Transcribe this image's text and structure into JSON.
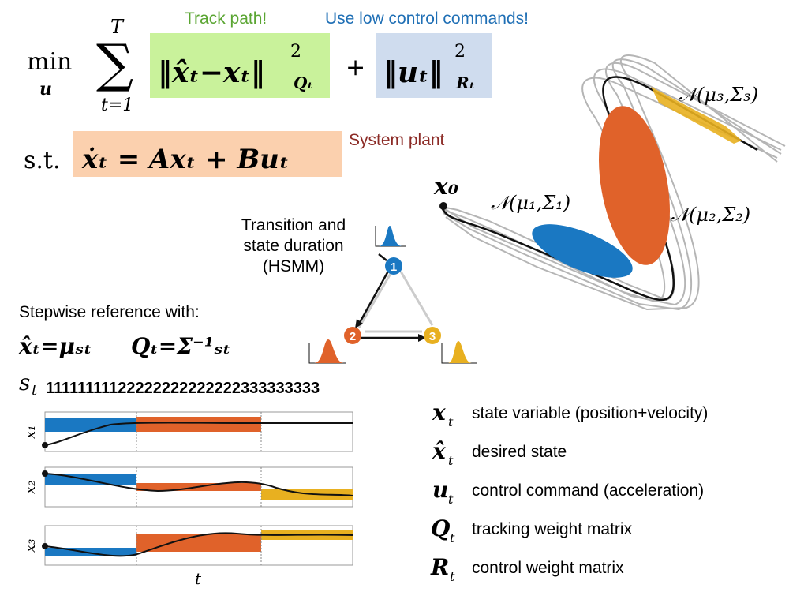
{
  "colors": {
    "blue": "#1a78c2",
    "orange": "#e0622a",
    "yellow": "#e8b020",
    "green_box": "#c9f29b",
    "blue_box": "#cfdcee",
    "orange_box": "#fbd0ae",
    "green_text": "#5aa532",
    "blue_text": "#1f6fb5",
    "red_text": "#8b2a25",
    "grey": "#b5b5b5"
  },
  "annotations": {
    "track_path": "Track path!",
    "low_control": "Use low control commands!",
    "system_plant": "System plant",
    "transition_line1": "Transition and",
    "transition_line2": "state duration",
    "transition_line3": "(HSMM)",
    "stepwise": "Stepwise reference with:"
  },
  "equation": {
    "min": "min",
    "min_sub": "u",
    "sum_upper": "T",
    "sum_lower": "t=1",
    "plus": "+",
    "st": "s.t.",
    "plant": "ẋ = Ax + Bu"
  },
  "states": {
    "node1": "1",
    "node2": "2",
    "node3": "3"
  },
  "gaussians": {
    "g1": "𝒩(μ₁,Σ₁)",
    "g2": "𝒩(μ₂,Σ₂)",
    "g3": "𝒩(μ₃,Σ₃)",
    "x0": "x₀"
  },
  "sequence": {
    "label": "s",
    "value": "11111111122222222222222333333333"
  },
  "plots": {
    "ylabels": [
      "x₁",
      "x₂",
      "x₃"
    ],
    "xlabel": "t"
  },
  "legend": [
    {
      "symbol": "x",
      "desc": "state variable (position+velocity)"
    },
    {
      "symbol": "x̂",
      "desc": "desired state"
    },
    {
      "symbol": "u",
      "desc": "control command (acceleration)"
    },
    {
      "symbol": "Q",
      "desc": "tracking weight matrix"
    },
    {
      "symbol": "R",
      "desc": "control weight matrix"
    }
  ]
}
